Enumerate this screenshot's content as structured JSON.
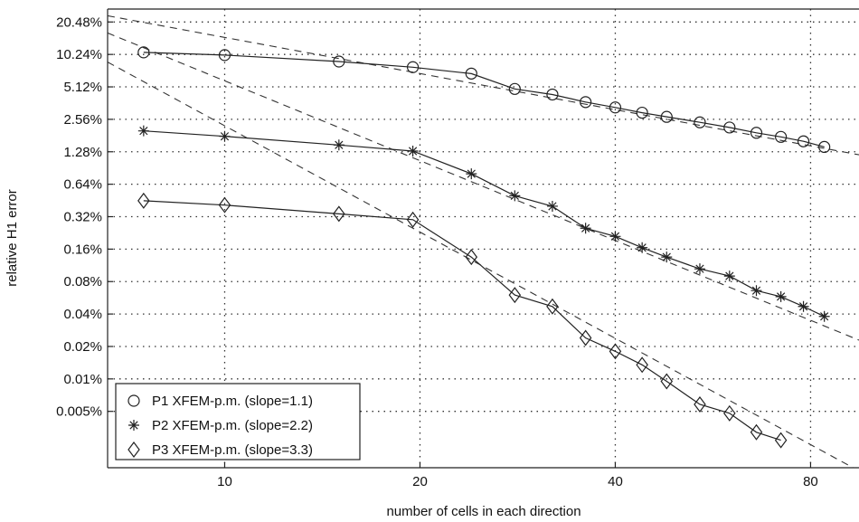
{
  "chart_data": {
    "type": "line",
    "title": "",
    "xlabel": "number of cells in each direction",
    "ylabel": "relative H1 error",
    "x_scale": "log2",
    "y_scale": "log2",
    "xlim": [
      6.6,
      95
    ],
    "ylim": [
      0.0015,
      27
    ],
    "grid": true,
    "legend_position": "bottom-left",
    "x_ticks": [
      10,
      20,
      40,
      80
    ],
    "x_tick_labels": [
      "10",
      "20",
      "40",
      "80"
    ],
    "y_ticks": [
      20.48,
      10.24,
      5.12,
      2.56,
      1.28,
      0.64,
      0.32,
      0.16,
      0.08,
      0.04,
      0.02,
      0.01,
      0.005
    ],
    "y_tick_labels": [
      "20.48%",
      "10.24%",
      "5.12%",
      "2.56%",
      "1.28%",
      "0.64%",
      "0.32%",
      "0.16%",
      "0.08%",
      "0.04%",
      "0.02%",
      "0.01%",
      "0.005%"
    ],
    "series": [
      {
        "name": "P1 XFEM-p.m. (slope=1.1)",
        "marker": "circle",
        "x": [
          7.5,
          10,
          15,
          19.5,
          24,
          28,
          32,
          36,
          40,
          44,
          48,
          54,
          60,
          66,
          72,
          78,
          84
        ],
        "y": [
          10.7,
          10.1,
          8.8,
          7.8,
          6.8,
          4.9,
          4.35,
          3.7,
          3.3,
          2.95,
          2.7,
          2.4,
          2.15,
          1.92,
          1.76,
          1.6,
          1.42
        ]
      },
      {
        "name": "P2 XFEM-p.m. (slope=2.2)",
        "marker": "asterisk",
        "x": [
          7.5,
          10,
          15,
          19.5,
          24,
          28,
          32,
          36,
          40,
          44,
          48,
          54,
          60,
          66,
          72,
          78,
          84
        ],
        "y": [
          2.0,
          1.78,
          1.48,
          1.3,
          0.8,
          0.5,
          0.4,
          0.25,
          0.21,
          0.165,
          0.135,
          0.105,
          0.09,
          0.066,
          0.058,
          0.047,
          0.038
        ]
      },
      {
        "name": "P3 XFEM-p.m. (slope=3.3)",
        "marker": "diamond",
        "x": [
          7.5,
          10,
          15,
          19.5,
          24,
          28,
          32,
          36,
          40,
          44,
          48,
          54,
          60,
          66,
          72
        ],
        "y": [
          0.45,
          0.41,
          0.34,
          0.3,
          0.135,
          0.06,
          0.047,
          0.024,
          0.018,
          0.0135,
          0.0095,
          0.0058,
          0.0048,
          0.0032,
          0.0027
        ]
      }
    ],
    "reference_lines": [
      {
        "slope": 1.1,
        "x": [
          6.6,
          95
        ],
        "y": [
          23.4,
          1.2
        ]
      },
      {
        "slope": 2.2,
        "x": [
          6.6,
          95
        ],
        "y": [
          16.2,
          0.0229
        ]
      },
      {
        "slope": 3.3,
        "x": [
          6.6,
          95
        ],
        "y": [
          8.7,
          0.0014
        ]
      }
    ]
  }
}
